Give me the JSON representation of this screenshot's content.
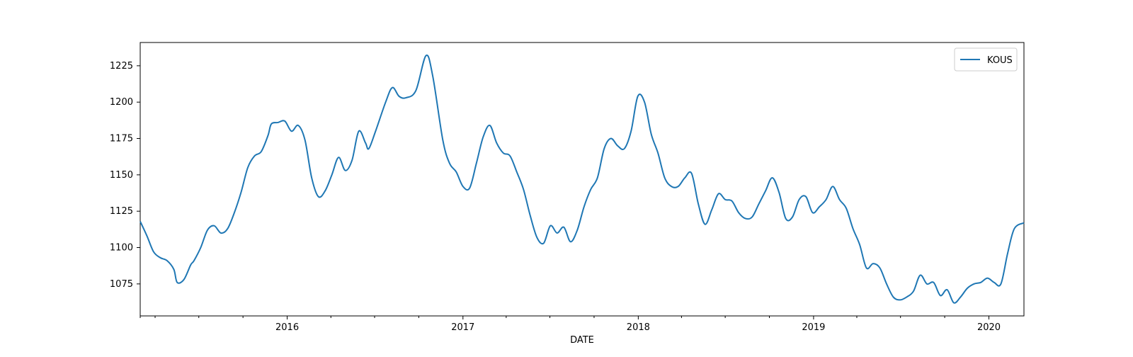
{
  "chart_data": {
    "type": "line",
    "title": "",
    "xlabel": "DATE",
    "ylabel": "",
    "xlim": [
      "2015-03-01",
      "2020-03-14"
    ],
    "ylim": [
      1053,
      1241
    ],
    "xticks": [
      "2016",
      "2017",
      "2018",
      "2019",
      "2020"
    ],
    "yticks": [
      1075,
      1100,
      1125,
      1150,
      1175,
      1200,
      1225
    ],
    "grid": false,
    "legend_position": "top-right",
    "colors": {
      "line": "#1f77b4",
      "axis": "#000000"
    },
    "series": [
      {
        "name": "KOUS",
        "points": [
          [
            "2015-03-01",
            1118
          ],
          [
            "2015-03-15",
            1108
          ],
          [
            "2015-03-29",
            1097
          ],
          [
            "2015-04-12",
            1093
          ],
          [
            "2015-04-26",
            1091
          ],
          [
            "2015-05-10",
            1085
          ],
          [
            "2015-05-17",
            1076
          ],
          [
            "2015-05-31",
            1078
          ],
          [
            "2015-06-14",
            1088
          ],
          [
            "2015-06-21",
            1091
          ],
          [
            "2015-07-05",
            1100
          ],
          [
            "2015-07-19",
            1112
          ],
          [
            "2015-08-02",
            1115
          ],
          [
            "2015-08-16",
            1110
          ],
          [
            "2015-08-30",
            1113
          ],
          [
            "2015-09-13",
            1124
          ],
          [
            "2015-09-27",
            1138
          ],
          [
            "2015-10-11",
            1155
          ],
          [
            "2015-10-25",
            1163
          ],
          [
            "2015-11-08",
            1166
          ],
          [
            "2015-11-22",
            1177
          ],
          [
            "2015-11-29",
            1185
          ],
          [
            "2015-12-13",
            1186
          ],
          [
            "2015-12-27",
            1187
          ],
          [
            "2016-01-10",
            1180
          ],
          [
            "2016-01-24",
            1184
          ],
          [
            "2016-02-07",
            1174
          ],
          [
            "2016-02-21",
            1148
          ],
          [
            "2016-03-06",
            1135
          ],
          [
            "2016-03-20",
            1139
          ],
          [
            "2016-04-03",
            1150
          ],
          [
            "2016-04-17",
            1162
          ],
          [
            "2016-05-01",
            1153
          ],
          [
            "2016-05-15",
            1160
          ],
          [
            "2016-05-29",
            1180
          ],
          [
            "2016-06-12",
            1172
          ],
          [
            "2016-06-19",
            1168
          ],
          [
            "2016-07-03",
            1180
          ],
          [
            "2016-07-24",
            1200
          ],
          [
            "2016-08-07",
            1210
          ],
          [
            "2016-08-21",
            1204
          ],
          [
            "2016-09-04",
            1203
          ],
          [
            "2016-09-25",
            1208
          ],
          [
            "2016-10-16",
            1232
          ],
          [
            "2016-10-30",
            1218
          ],
          [
            "2016-11-20",
            1174
          ],
          [
            "2016-12-04",
            1158
          ],
          [
            "2016-12-18",
            1152
          ],
          [
            "2017-01-01",
            1142
          ],
          [
            "2017-01-15",
            1141
          ],
          [
            "2017-01-29",
            1158
          ],
          [
            "2017-02-12",
            1176
          ],
          [
            "2017-02-26",
            1184
          ],
          [
            "2017-03-12",
            1172
          ],
          [
            "2017-03-26",
            1165
          ],
          [
            "2017-04-09",
            1163
          ],
          [
            "2017-04-23",
            1152
          ],
          [
            "2017-05-07",
            1140
          ],
          [
            "2017-05-21",
            1122
          ],
          [
            "2017-06-04",
            1107
          ],
          [
            "2017-06-18",
            1103
          ],
          [
            "2017-07-02",
            1115
          ],
          [
            "2017-07-16",
            1110
          ],
          [
            "2017-07-30",
            1114
          ],
          [
            "2017-08-13",
            1104
          ],
          [
            "2017-08-27",
            1112
          ],
          [
            "2017-09-10",
            1128
          ],
          [
            "2017-09-24",
            1140
          ],
          [
            "2017-10-08",
            1148
          ],
          [
            "2017-10-22",
            1168
          ],
          [
            "2017-11-05",
            1175
          ],
          [
            "2017-11-19",
            1170
          ],
          [
            "2017-12-03",
            1168
          ],
          [
            "2017-12-17",
            1180
          ],
          [
            "2017-12-31",
            1204
          ],
          [
            "2018-01-14",
            1200
          ],
          [
            "2018-01-28",
            1178
          ],
          [
            "2018-02-11",
            1165
          ],
          [
            "2018-02-25",
            1148
          ],
          [
            "2018-03-11",
            1142
          ],
          [
            "2018-03-25",
            1142
          ],
          [
            "2018-04-08",
            1148
          ],
          [
            "2018-04-22",
            1151
          ],
          [
            "2018-05-06",
            1130
          ],
          [
            "2018-05-20",
            1116
          ],
          [
            "2018-06-03",
            1126
          ],
          [
            "2018-06-17",
            1137
          ],
          [
            "2018-07-01",
            1133
          ],
          [
            "2018-07-15",
            1132
          ],
          [
            "2018-07-29",
            1124
          ],
          [
            "2018-08-12",
            1120
          ],
          [
            "2018-08-26",
            1121
          ],
          [
            "2018-09-09",
            1130
          ],
          [
            "2018-09-23",
            1139
          ],
          [
            "2018-10-07",
            1148
          ],
          [
            "2018-10-21",
            1138
          ],
          [
            "2018-11-04",
            1120
          ],
          [
            "2018-11-18",
            1121
          ],
          [
            "2018-12-02",
            1133
          ],
          [
            "2018-12-16",
            1135
          ],
          [
            "2018-12-30",
            1124
          ],
          [
            "2019-01-13",
            1128
          ],
          [
            "2019-01-27",
            1133
          ],
          [
            "2019-02-10",
            1142
          ],
          [
            "2019-02-24",
            1133
          ],
          [
            "2019-03-10",
            1127
          ],
          [
            "2019-03-24",
            1113
          ],
          [
            "2019-04-07",
            1102
          ],
          [
            "2019-04-21",
            1086
          ],
          [
            "2019-05-05",
            1089
          ],
          [
            "2019-05-19",
            1086
          ],
          [
            "2019-06-02",
            1075
          ],
          [
            "2019-06-16",
            1066
          ],
          [
            "2019-06-30",
            1064
          ],
          [
            "2019-07-14",
            1066
          ],
          [
            "2019-07-28",
            1070
          ],
          [
            "2019-08-11",
            1081
          ],
          [
            "2019-08-25",
            1075
          ],
          [
            "2019-09-08",
            1076
          ],
          [
            "2019-09-22",
            1067
          ],
          [
            "2019-10-06",
            1071
          ],
          [
            "2019-10-20",
            1062
          ],
          [
            "2019-11-03",
            1066
          ],
          [
            "2019-11-17",
            1072
          ],
          [
            "2019-12-01",
            1075
          ],
          [
            "2019-12-15",
            1076
          ],
          [
            "2019-12-29",
            1079
          ],
          [
            "2020-01-12",
            1076
          ],
          [
            "2020-01-26",
            1075
          ],
          [
            "2020-02-09",
            1096
          ],
          [
            "2020-02-23",
            1113
          ],
          [
            "2020-03-14",
            1117
          ]
        ]
      }
    ]
  }
}
